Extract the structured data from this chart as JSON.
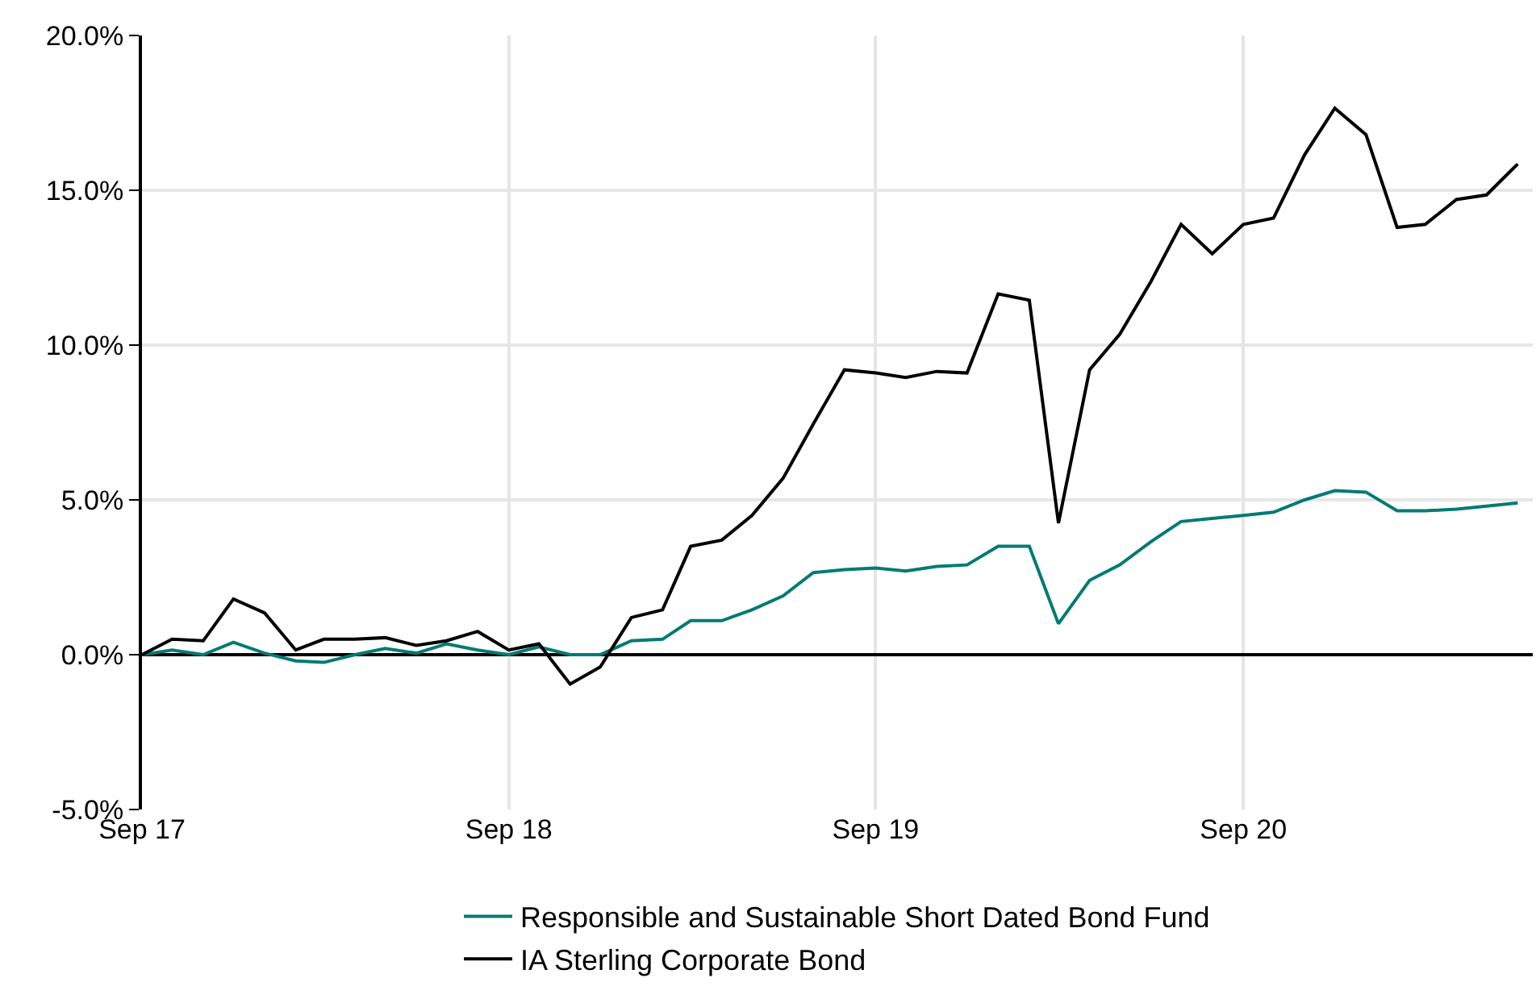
{
  "chart_data": {
    "type": "line",
    "x": [
      "2017-09",
      "2017-10",
      "2017-11",
      "2017-12",
      "2018-01",
      "2018-02",
      "2018-03",
      "2018-04",
      "2018-05",
      "2018-06",
      "2018-07",
      "2018-08",
      "2018-09",
      "2018-10",
      "2018-11",
      "2018-12",
      "2019-01",
      "2019-02",
      "2019-03",
      "2019-04",
      "2019-05",
      "2019-06",
      "2019-07",
      "2019-08",
      "2019-09",
      "2019-10",
      "2019-11",
      "2019-12",
      "2020-01",
      "2020-02",
      "2020-03",
      "2020-04",
      "2020-05",
      "2020-06",
      "2020-07",
      "2020-08",
      "2020-09",
      "2020-10",
      "2020-11",
      "2020-12",
      "2021-01",
      "2021-02",
      "2021-03",
      "2021-04",
      "2021-05",
      "2021-06"
    ],
    "series": [
      {
        "name": "Responsible and Sustainable Short Dated Bond Fund",
        "color": "#007b73",
        "values": [
          0,
          0.15,
          0,
          0.4,
          0.05,
          -0.2,
          -0.25,
          0,
          0.2,
          0.05,
          0.35,
          0.15,
          0,
          0.25,
          0,
          0,
          0.45,
          0.5,
          1.1,
          1.1,
          1.45,
          1.9,
          2.65,
          2.75,
          2.8,
          2.7,
          2.85,
          2.9,
          3.5,
          3.5,
          1.0,
          2.4,
          2.9,
          3.65,
          4.3,
          4.4,
          4.5,
          4.6,
          5.0,
          5.3,
          5.25,
          4.65,
          4.65,
          4.7,
          4.8,
          4.9
        ]
      },
      {
        "name": "IA Sterling Corporate Bond",
        "color": "#000000",
        "values": [
          0,
          0.5,
          0.45,
          1.8,
          1.35,
          0.15,
          0.5,
          0.5,
          0.55,
          0.3,
          0.45,
          0.75,
          0.15,
          0.35,
          -0.95,
          -0.4,
          1.2,
          1.45,
          3.5,
          3.7,
          4.5,
          5.7,
          7.45,
          9.2,
          9.1,
          8.95,
          9.15,
          9.1,
          11.65,
          11.45,
          4.25,
          9.2,
          10.35,
          12.05,
          13.9,
          12.95,
          13.9,
          14.1,
          16.15,
          17.65,
          16.8,
          13.8,
          13.9,
          14.7,
          14.85,
          15.85
        ]
      }
    ],
    "xlim": [
      "2017-09-01",
      "2021-06-16"
    ],
    "xticks": [
      {
        "value": "2017-09-01",
        "label": "Sep 17"
      },
      {
        "value": "2018-09-01",
        "label": "Sep 18"
      },
      {
        "value": "2019-09-01",
        "label": "Sep 19"
      },
      {
        "value": "2020-09-01",
        "label": "Sep 20"
      }
    ],
    "ylim": [
      -5,
      20
    ],
    "yticks": [
      {
        "value": -5,
        "label": "-5.0%"
      },
      {
        "value": 0,
        "label": "0.0%"
      },
      {
        "value": 5,
        "label": "5.0%"
      },
      {
        "value": 10,
        "label": "10.0%"
      },
      {
        "value": 15,
        "label": "15.0%"
      },
      {
        "value": 20,
        "label": "20.0%"
      }
    ],
    "grid": true,
    "legend": "bottom",
    "marker": "none",
    "line_style": "solid"
  }
}
